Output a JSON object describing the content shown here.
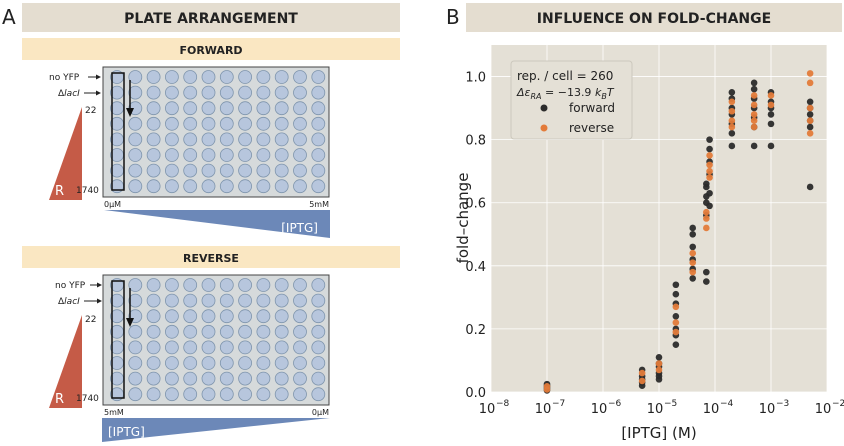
{
  "panel_a": {
    "letter": "A",
    "title": "PLATE ARRANGEMENT",
    "forward": {
      "heading": "FORWARD",
      "no_yfp": "no YFP",
      "delta_laci": "Δ",
      "laci": "lacI",
      "r_low": "22",
      "r_high": "1740",
      "r_label": "R",
      "iptg_left": "0μM",
      "iptg_right": "5mM",
      "iptg_label": "[IPTG]"
    },
    "reverse": {
      "heading": "REVERSE",
      "no_yfp": "no YFP",
      "delta_laci": "Δ",
      "laci": "lacI",
      "r_low": "22",
      "r_high": "1740",
      "r_label": "R",
      "iptg_left": "5mM",
      "iptg_right": "0μM",
      "iptg_label": "[IPTG]"
    }
  },
  "panel_b": {
    "letter": "B",
    "title": "INFLUENCE ON FOLD-CHANGE"
  },
  "colors": {
    "header_bg": "#e4ddd0",
    "subheader_bg": "#fae7c2",
    "plate_bg": "#d6dadb",
    "well_fill": "#b7c6dd",
    "well_stroke": "#7f95ad",
    "triangle_red": "#c55b47",
    "triangle_blue": "#6c88b8",
    "plot_bg": "#e4e0d6",
    "forward": "#2b2b2b",
    "reverse": "#e37b3a"
  },
  "chart_data": {
    "type": "scatter",
    "xscale": "log",
    "xlim": [
      1e-08,
      0.01
    ],
    "ylim": [
      0.0,
      1.1
    ],
    "xlabel": "[IPTG] (M)",
    "ylabel": "fold–change",
    "xticks": [
      {
        "v": 1e-08,
        "label": "10",
        "exp": "−8"
      },
      {
        "v": 1e-07,
        "label": "10",
        "exp": "−7"
      },
      {
        "v": 1e-06,
        "label": "10",
        "exp": "−6"
      },
      {
        "v": 1e-05,
        "label": "10",
        "exp": "−5"
      },
      {
        "v": 0.0001,
        "label": "10",
        "exp": "−4"
      },
      {
        "v": 0.001,
        "label": "10",
        "exp": "−3"
      },
      {
        "v": 0.01,
        "label": "10",
        "exp": "−2"
      }
    ],
    "yticks": [
      {
        "v": 0.0,
        "label": "0.0"
      },
      {
        "v": 0.2,
        "label": "0.2"
      },
      {
        "v": 0.4,
        "label": "0.4"
      },
      {
        "v": 0.6,
        "label": "0.6"
      },
      {
        "v": 0.8,
        "label": "0.8"
      },
      {
        "v": 1.0,
        "label": "1.0"
      }
    ],
    "legend": {
      "line1": "rep. / cell = 260",
      "line2_prefix": "Δε",
      "line2_sub": "RA",
      "line2_mid": " = −13.9 ",
      "line2_k": "k",
      "line2_ksub": "B",
      "line2_T": "T",
      "placement": "top-left"
    },
    "series": [
      {
        "name": "forward",
        "points": [
          [
            1e-07,
            0.02
          ],
          [
            1e-07,
            0.015
          ],
          [
            1e-07,
            0.01
          ],
          [
            1e-07,
            0.025
          ],
          [
            1e-07,
            0.005
          ],
          [
            5e-06,
            0.07
          ],
          [
            5e-06,
            0.05
          ],
          [
            5e-06,
            0.04
          ],
          [
            5e-06,
            0.03
          ],
          [
            5e-06,
            0.02
          ],
          [
            1e-05,
            0.11
          ],
          [
            1e-05,
            0.09
          ],
          [
            1e-05,
            0.08
          ],
          [
            1e-05,
            0.06
          ],
          [
            1e-05,
            0.05
          ],
          [
            1e-05,
            0.04
          ],
          [
            2e-05,
            0.34
          ],
          [
            2e-05,
            0.31
          ],
          [
            2e-05,
            0.28
          ],
          [
            2e-05,
            0.24
          ],
          [
            2e-05,
            0.2
          ],
          [
            2e-05,
            0.18
          ],
          [
            2e-05,
            0.15
          ],
          [
            4e-05,
            0.52
          ],
          [
            4e-05,
            0.5
          ],
          [
            4e-05,
            0.46
          ],
          [
            4e-05,
            0.42
          ],
          [
            4e-05,
            0.39
          ],
          [
            4e-05,
            0.36
          ],
          [
            7e-05,
            0.66
          ],
          [
            7e-05,
            0.65
          ],
          [
            7e-05,
            0.62
          ],
          [
            7e-05,
            0.6
          ],
          [
            7e-05,
            0.56
          ],
          [
            7e-05,
            0.38
          ],
          [
            7e-05,
            0.35
          ],
          [
            8e-05,
            0.8
          ],
          [
            8e-05,
            0.77
          ],
          [
            8e-05,
            0.73
          ],
          [
            8e-05,
            0.69
          ],
          [
            8e-05,
            0.63
          ],
          [
            8e-05,
            0.59
          ],
          [
            0.0002,
            0.95
          ],
          [
            0.0002,
            0.93
          ],
          [
            0.0002,
            0.9
          ],
          [
            0.0002,
            0.88
          ],
          [
            0.0002,
            0.85
          ],
          [
            0.0002,
            0.82
          ],
          [
            0.0002,
            0.78
          ],
          [
            0.0005,
            0.98
          ],
          [
            0.0005,
            0.96
          ],
          [
            0.0005,
            0.93
          ],
          [
            0.0005,
            0.9
          ],
          [
            0.0005,
            0.87
          ],
          [
            0.0005,
            0.84
          ],
          [
            0.0005,
            0.78
          ],
          [
            0.001,
            0.95
          ],
          [
            0.001,
            0.92
          ],
          [
            0.001,
            0.9
          ],
          [
            0.001,
            0.88
          ],
          [
            0.001,
            0.85
          ],
          [
            0.001,
            0.78
          ],
          [
            0.005,
            0.92
          ],
          [
            0.005,
            0.9
          ],
          [
            0.005,
            0.88
          ],
          [
            0.005,
            0.86
          ],
          [
            0.005,
            0.84
          ],
          [
            0.005,
            0.65
          ]
        ]
      },
      {
        "name": "reverse",
        "points": [
          [
            1e-07,
            0.018
          ],
          [
            1e-07,
            0.008
          ],
          [
            5e-06,
            0.06
          ],
          [
            5e-06,
            0.035
          ],
          [
            1e-05,
            0.09
          ],
          [
            1e-05,
            0.07
          ],
          [
            2e-05,
            0.27
          ],
          [
            2e-05,
            0.22
          ],
          [
            2e-05,
            0.19
          ],
          [
            4e-05,
            0.44
          ],
          [
            4e-05,
            0.41
          ],
          [
            4e-05,
            0.38
          ],
          [
            7e-05,
            0.57
          ],
          [
            7e-05,
            0.55
          ],
          [
            7e-05,
            0.52
          ],
          [
            8e-05,
            0.75
          ],
          [
            8e-05,
            0.72
          ],
          [
            8e-05,
            0.7
          ],
          [
            8e-05,
            0.68
          ],
          [
            0.0002,
            0.92
          ],
          [
            0.0002,
            0.89
          ],
          [
            0.0002,
            0.86
          ],
          [
            0.0002,
            0.84
          ],
          [
            0.0005,
            0.94
          ],
          [
            0.0005,
            0.91
          ],
          [
            0.0005,
            0.88
          ],
          [
            0.0005,
            0.86
          ],
          [
            0.0005,
            0.84
          ],
          [
            0.001,
            0.94
          ],
          [
            0.001,
            0.91
          ],
          [
            0.005,
            1.01
          ],
          [
            0.005,
            0.98
          ],
          [
            0.005,
            0.9
          ],
          [
            0.005,
            0.86
          ],
          [
            0.005,
            0.82
          ]
        ]
      }
    ]
  }
}
